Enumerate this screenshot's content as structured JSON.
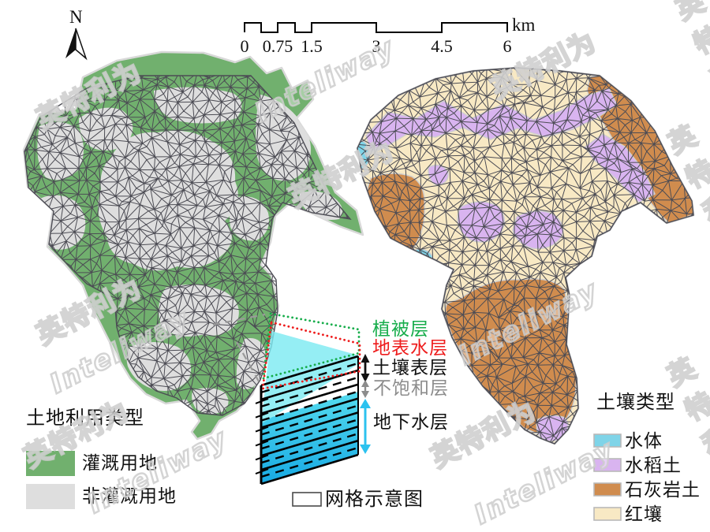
{
  "figure": {
    "north_label": "N"
  },
  "scalebar": {
    "labels": [
      "0",
      "0.75",
      "1.5",
      "3",
      "4.5",
      "6"
    ],
    "unit": "km"
  },
  "land_use_legend": {
    "title": "土地利用类型",
    "items": [
      {
        "label": "灌溉用地",
        "color": "#71b06e"
      },
      {
        "label": "非灌溉用地",
        "color": "#dedede"
      }
    ]
  },
  "soil_legend": {
    "title": "土壤类型",
    "items": [
      {
        "label": "水体",
        "color": "#7fd4e8"
      },
      {
        "label": "水稻土",
        "color": "#d9b4f0"
      },
      {
        "label": "石灰岩土",
        "color": "#d08c4e"
      },
      {
        "label": "红壤",
        "color": "#f8e9c4"
      }
    ]
  },
  "schematic": {
    "vegetation_label": {
      "text": "植被层",
      "color": "#17ad4b"
    },
    "surface_water_label": {
      "text": "地表水层",
      "color": "#ee1c1c"
    },
    "soil_surface_label": {
      "text": "土壤表层",
      "color": "#111111"
    },
    "unsaturated_label": {
      "text": "不饱和层",
      "color": "#8c8c8c"
    },
    "groundwater_label": {
      "text": "地下水层",
      "color": "#111111"
    },
    "grid_caption": "网格示意图"
  },
  "watermarks": {
    "latin": "Inteliway",
    "cjk": "英特利为"
  },
  "map_colors": {
    "mesh_stroke": "#4c4c54",
    "irrigated_green": "#71b06e",
    "non_irrigated_gray": "#dedede",
    "red_soil_cream": "#f8e9c4",
    "paddy_purple": "#d9b4f0",
    "limestone_brown": "#d08c4e",
    "water_blue": "#7fd4e8",
    "groundwater_cyan_top": "#55dbef",
    "groundwater_cyan_bottom": "#17a9e3"
  }
}
